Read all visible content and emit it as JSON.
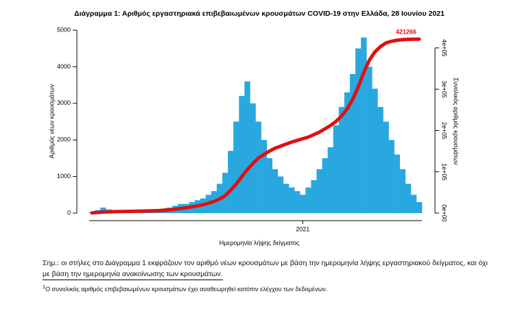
{
  "chart_data": {
    "type": "bar",
    "title": "Διάγραμμα 1: Αριθμός εργαστηριακά επιβεβαιωμένων κρουσμάτων COVID-19 στην Ελλάδα, 28 Ιουνίου 2021",
    "x_label": "Ημερομηνία λήψης δείγματος",
    "y_label": "Αριθμός νέων κρουσμάτων",
    "y2_label": "Συνολικός αριθμός κρουσμάτων",
    "annotation": "421266",
    "categories": [
      null,
      null,
      null,
      null,
      null,
      null,
      null,
      null,
      null,
      null,
      null,
      null,
      null,
      null,
      null,
      null,
      null,
      null,
      null,
      null,
      null,
      null,
      null,
      null,
      null,
      null,
      null,
      null,
      null,
      null,
      null,
      null,
      null,
      null,
      null,
      null,
      null,
      null,
      null,
      null,
      null,
      null,
      null,
      null,
      null,
      null,
      null,
      null,
      null,
      null,
      null,
      null,
      null,
      null,
      null,
      null,
      null,
      null,
      null,
      null
    ],
    "xticks": [
      {
        "value": 38,
        "label": "2021"
      }
    ],
    "series": [
      {
        "type": "bar",
        "color": "#29a8e0",
        "values": [
          30,
          80,
          150,
          100,
          60,
          30,
          20,
          20,
          20,
          20,
          30,
          40,
          60,
          100,
          150,
          200,
          250,
          250,
          300,
          350,
          400,
          500,
          600,
          800,
          1100,
          1700,
          2500,
          3200,
          3600,
          3000,
          2500,
          2000,
          1500,
          1200,
          1000,
          800,
          700,
          600,
          500,
          700,
          900,
          1200,
          1500,
          1800,
          2400,
          2900,
          3300,
          3800,
          4500,
          4800,
          4000,
          3400,
          2900,
          2500,
          2000,
          1600,
          1200,
          800,
          500,
          300
        ]
      },
      {
        "type": "line",
        "axis": "y2",
        "color": "#e01010",
        "values": [
          500,
          1500,
          2500,
          3000,
          3500,
          3800,
          4000,
          4200,
          4500,
          4800,
          5200,
          5600,
          6000,
          7000,
          8000,
          9500,
          11000,
          13000,
          15000,
          17500,
          20000,
          24000,
          28000,
          34000,
          42000,
          55000,
          70000,
          88000,
          105000,
          120000,
          133000,
          142000,
          150000,
          157000,
          162000,
          167000,
          172000,
          176000,
          180000,
          184000,
          190000,
          196000,
          204000,
          212000,
          222000,
          235000,
          252000,
          275000,
          305000,
          340000,
          370000,
          390000,
          403000,
          412000,
          416000,
          418500,
          420000,
          420800,
          421100,
          421266
        ]
      }
    ],
    "ylim": [
      0,
      5000
    ],
    "yticks": [
      0,
      1000,
      2000,
      3000,
      4000,
      5000
    ],
    "y2lim": [
      0,
      443000
    ],
    "y2ticks": [
      {
        "value": 0,
        "label": "0e+00"
      },
      {
        "value": 100000,
        "label": "1e+05"
      },
      {
        "value": 200000,
        "label": "2e+05"
      },
      {
        "value": 300000,
        "label": "3e+05"
      },
      {
        "value": 400000,
        "label": "4e+05"
      }
    ]
  },
  "notes": [
    "Σημ.: οι στήλες στο Διάγραμμα 1 εκφράζουν τον αριθμό νέων κρουσμάτων με βάση την ημερομηνία λήψης εργαστηριακού δείγματος, και όχι",
    "με βάση την ημερομηνία ανακοίνωσης των κρουσμάτων."
  ],
  "footnote": {
    "marker": "1",
    "text": "Ο συνολικός αριθμός επιβεβαιωμένων κρουσμάτων έχει αναθεωρηθεί κατόπιν ελέγχου των δεδομένων."
  }
}
